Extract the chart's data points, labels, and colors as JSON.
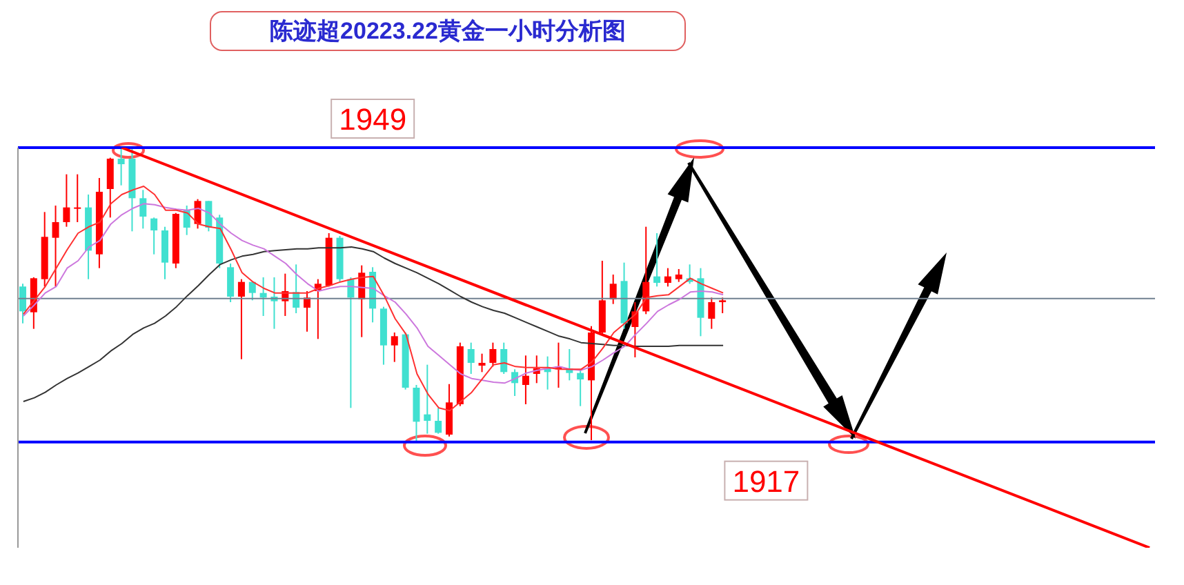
{
  "chart_data": {
    "type": "candlestick",
    "title": "陈迹超20223.22黄金一小时分析图",
    "categories": [
      null,
      null,
      null,
      null,
      null,
      null,
      null,
      null,
      null,
      null,
      null,
      null,
      null,
      null,
      null,
      null,
      null,
      null,
      null,
      null,
      null,
      null,
      null,
      null,
      null,
      null,
      null,
      null,
      null,
      null,
      null,
      null,
      null,
      null,
      null,
      null,
      null,
      null,
      null,
      null,
      null,
      null,
      null,
      null,
      null,
      null,
      null,
      null,
      null,
      null,
      null,
      null,
      null,
      null,
      null,
      null,
      null,
      null,
      null,
      null,
      null,
      null,
      null,
      null,
      null,
      null,
      null,
      null,
      null,
      null,
      null,
      null,
      null,
      null,
      null,
      null,
      null,
      null,
      null,
      null,
      null,
      null,
      null,
      null,
      null,
      null,
      null,
      null,
      null,
      null,
      null,
      null,
      null,
      null,
      null,
      null,
      null,
      null,
      null,
      null,
      null,
      null,
      null,
      null
    ],
    "ylim": [
      1905.5,
      1949
    ],
    "tick_labels": false,
    "marker": "none",
    "ohlc": [
      [
        1933.9,
        1934.2,
        1929.9,
        1931.2
      ],
      [
        1931.1,
        1934.9,
        1929.3,
        1934.8
      ],
      [
        1934.7,
        1942.0,
        1933.9,
        1939.3
      ],
      [
        1939.2,
        1942.7,
        1933.9,
        1940.9
      ],
      [
        1940.9,
        1946.1,
        1940.4,
        1942.5
      ],
      [
        1942.4,
        1946.1,
        1940.9,
        1942.5
      ],
      [
        1942.5,
        1943.9,
        1934.7,
        1937.8
      ],
      [
        1937.4,
        1945.7,
        1935.9,
        1944.2
      ],
      [
        1944.5,
        1947.9,
        1941.4,
        1947.8
      ],
      [
        1947.8,
        1949.0,
        1944.9,
        1947.2
      ],
      [
        1947.8,
        1948.9,
        1939.9,
        1943.5
      ],
      [
        1943.5,
        1944.4,
        1940.2,
        1941.5
      ],
      [
        1941.3,
        1941.4,
        1937.4,
        1940.0
      ],
      [
        1940.0,
        1940.4,
        1934.7,
        1936.5
      ],
      [
        1936.4,
        1941.9,
        1935.9,
        1941.8
      ],
      [
        1942.2,
        1942.7,
        1939.5,
        1940.3
      ],
      [
        1940.7,
        1943.4,
        1940.2,
        1943.2
      ],
      [
        1943.2,
        1943.2,
        1939.9,
        1940.3
      ],
      [
        1941.4,
        1941.7,
        1935.9,
        1936.4
      ],
      [
        1936.0,
        1936.4,
        1932.2,
        1932.8
      ],
      [
        1932.8,
        1934.7,
        1926.0,
        1934.4
      ],
      [
        1934.4,
        1934.4,
        1932.4,
        1933.2
      ],
      [
        1933.2,
        1934.9,
        1930.7,
        1932.7
      ],
      [
        1932.8,
        1934.9,
        1929.3,
        1932.3
      ],
      [
        1932.3,
        1935.3,
        1930.7,
        1933.4
      ],
      [
        1933.3,
        1936.3,
        1931.0,
        1931.6
      ],
      [
        1931.6,
        1933.4,
        1929.0,
        1932.7
      ],
      [
        1933.4,
        1934.7,
        1928.2,
        1934.2
      ],
      [
        1934.0,
        1939.7,
        1933.9,
        1939.2
      ],
      [
        1939.2,
        1939.4,
        1934.4,
        1934.7
      ],
      [
        1934.7,
        1934.9,
        1920.7,
        1932.7
      ],
      [
        1932.5,
        1936.2,
        1928.4,
        1935.4
      ],
      [
        1935.5,
        1936.0,
        1930.0,
        1931.5
      ],
      [
        1931.5,
        1931.7,
        1925.4,
        1927.5
      ],
      [
        1927.5,
        1928.9,
        1925.7,
        1928.5
      ],
      [
        1928.7,
        1928.9,
        1922.7,
        1922.9
      ],
      [
        1922.9,
        1923.2,
        1917.0,
        1919.2
      ],
      [
        1920.0,
        1925.4,
        1917.9,
        1919.3
      ],
      [
        1919.3,
        1920.7,
        1917.9,
        1918.0
      ],
      [
        1917.8,
        1923.3,
        1917.6,
        1921.3
      ],
      [
        1921.1,
        1927.8,
        1920.9,
        1927.4
      ],
      [
        1927.1,
        1927.8,
        1924.4,
        1925.6
      ],
      [
        1925.3,
        1926.6,
        1924.6,
        1925.6
      ],
      [
        1925.6,
        1927.8,
        1925.2,
        1927.1
      ],
      [
        1927.1,
        1927.8,
        1924.4,
        1924.6
      ],
      [
        1924.6,
        1924.9,
        1922.0,
        1923.4
      ],
      [
        1923.2,
        1926.4,
        1921.1,
        1924.2
      ],
      [
        1924.4,
        1926.4,
        1923.4,
        1925.0
      ],
      [
        1925.0,
        1926.3,
        1922.7,
        1924.6
      ],
      [
        1924.9,
        1927.8,
        1922.9,
        1925.2
      ],
      [
        1925.0,
        1927.1,
        1923.7,
        1924.5
      ],
      [
        1924.5,
        1924.9,
        1920.9,
        1923.8
      ],
      [
        1923.7,
        1929.6,
        1917.2,
        1928.9
      ],
      [
        1928.9,
        1936.7,
        1928.7,
        1932.4
      ],
      [
        1932.5,
        1935.2,
        1932.0,
        1934.2
      ],
      [
        1934.5,
        1936.5,
        1929.3,
        1929.9
      ],
      [
        1929.5,
        1932.2,
        1926.2,
        1931.2
      ],
      [
        1931.2,
        1940.4,
        1930.9,
        1934.4
      ],
      [
        1935.0,
        1939.7,
        1933.9,
        1934.3
      ],
      [
        1934.3,
        1935.9,
        1933.9,
        1935.0
      ],
      [
        1934.7,
        1935.8,
        1934.4,
        1935.2
      ],
      [
        1934.8,
        1936.3,
        1934.2,
        1934.4
      ],
      [
        1934.8,
        1935.9,
        1928.5,
        1930.5
      ],
      [
        1930.4,
        1932.7,
        1929.3,
        1932.2
      ],
      [
        1932.2,
        1932.7,
        1931.0,
        1932.4
      ],
      null,
      null,
      null,
      null,
      null,
      null,
      null,
      null,
      null,
      null,
      null,
      null,
      null,
      null,
      null,
      null,
      null,
      null,
      null,
      null,
      null,
      null,
      null,
      null,
      null,
      null,
      null,
      null,
      null,
      null,
      null,
      null,
      null,
      null,
      null,
      null,
      null,
      null,
      null
    ],
    "colors": [
      "#40e0d0",
      "#ff0000",
      "#ff0000",
      "#ff0000",
      "#ff0000",
      "#ff0000",
      "#40e0d0",
      "#ff0000",
      "#ff0000",
      "#40e0d0",
      "#40e0d0",
      "#40e0d0",
      "#40e0d0",
      "#40e0d0",
      "#ff0000",
      "#40e0d0",
      "#ff0000",
      "#40e0d0",
      "#40e0d0",
      "#40e0d0",
      "#ff0000",
      "#40e0d0",
      "#40e0d0",
      "#40e0d0",
      "#ff0000",
      "#40e0d0",
      "#ff0000",
      "#ff0000",
      "#ff0000",
      "#40e0d0",
      "#40e0d0",
      "#ff0000",
      "#40e0d0",
      "#40e0d0",
      "#ff0000",
      "#40e0d0",
      "#40e0d0",
      "#40e0d0",
      "#40e0d0",
      "#ff0000",
      "#ff0000",
      "#40e0d0",
      "#ff0000",
      "#ff0000",
      "#40e0d0",
      "#40e0d0",
      "#ff0000",
      "#ff0000",
      "#40e0d0",
      "#ff0000",
      "#40e0d0",
      "#40e0d0",
      "#ff0000",
      "#ff0000",
      "#ff0000",
      "#40e0d0",
      "#ff0000",
      "#ff0000",
      "#40e0d0",
      "#ff0000",
      "#ff0000",
      "#40e0d0",
      "#40e0d0",
      "#ff0000",
      "#ff0000",
      null,
      null,
      null,
      null,
      null,
      null,
      null,
      null,
      null,
      null,
      null,
      null,
      null,
      null,
      null,
      null,
      null,
      null,
      null,
      null,
      null,
      null,
      null,
      null,
      null,
      null,
      null,
      null,
      null,
      null,
      null,
      null,
      null,
      null,
      null,
      null,
      null,
      null,
      null
    ],
    "series": [
      {
        "type": "line",
        "color": "#333333",
        "values": [
          1921.4,
          1921.8,
          1922.4,
          1923.2,
          1923.9,
          1924.5,
          1925.2,
          1925.9,
          1926.9,
          1927.7,
          1928.7,
          1929.4,
          1929.9,
          1930.7,
          1931.7,
          1932.9,
          1934.0,
          1935.2,
          1936.3,
          1936.8,
          1937.2,
          1937.4,
          1937.7,
          1937.8,
          1937.9,
          1938.0,
          1938.0,
          1938.1,
          1938.1,
          1938.1,
          1938.2,
          1938.0,
          1937.7,
          1937.0,
          1936.4,
          1935.9,
          1935.4,
          1934.8,
          1934.2,
          1933.5,
          1932.8,
          1932.2,
          1931.7,
          1931.3,
          1931.0,
          1930.5,
          1930.0,
          1929.5,
          1929.0,
          1928.5,
          1928.2,
          1927.8,
          1927.7,
          1927.6,
          1927.5,
          1927.5,
          1927.4,
          1927.4,
          1927.4,
          1927.4,
          1927.5,
          1927.5,
          1927.5,
          1927.5,
          1927.5,
          null,
          null,
          null,
          null,
          null,
          null,
          null,
          null,
          null,
          null,
          null,
          null,
          null,
          null,
          null,
          null,
          null,
          null,
          null,
          null,
          null,
          null,
          null,
          null,
          null,
          null,
          null,
          null,
          null,
          null,
          null,
          null,
          null,
          null,
          null,
          null,
          null,
          null,
          null
        ]
      },
      {
        "type": "line",
        "color": "#cc77dd",
        "values": [
          1930.7,
          1931.9,
          1933.2,
          1933.9,
          1935.9,
          1936.7,
          1938.2,
          1938.9,
          1940.7,
          1941.7,
          1942.4,
          1942.9,
          1942.8,
          1942.5,
          1942.3,
          1942.2,
          1942.4,
          1941.9,
          1940.7,
          1939.7,
          1938.9,
          1938.4,
          1938.0,
          1937.2,
          1936.4,
          1935.2,
          1934.2,
          1933.4,
          1933.7,
          1933.9,
          1933.9,
          1933.8,
          1933.7,
          1932.9,
          1932.2,
          1930.9,
          1929.4,
          1927.4,
          1926.4,
          1925.4,
          1924.4,
          1923.9,
          1923.7,
          1923.5,
          1923.4,
          1923.9,
          1924.5,
          1924.8,
          1925.0,
          1925.2,
          1924.9,
          1924.8,
          1925.2,
          1925.9,
          1926.7,
          1927.4,
          1928.7,
          1929.9,
          1931.2,
          1931.9,
          1932.5,
          1933.3,
          1933.4,
          1933.3,
          1933.0,
          null,
          null,
          null,
          null,
          null,
          null,
          null,
          null,
          null,
          null,
          null,
          null,
          null,
          null,
          null,
          null,
          null,
          null,
          null,
          null,
          null,
          null,
          null,
          null,
          null,
          null,
          null,
          null,
          null,
          null,
          null,
          null,
          null,
          null,
          null,
          null,
          null,
          null,
          null
        ]
      },
      {
        "type": "line",
        "color": "#ff3030",
        "values": [
          1930.9,
          1932.4,
          1933.9,
          1935.9,
          1937.9,
          1939.7,
          1940.4,
          1940.9,
          1942.9,
          1943.9,
          1944.4,
          1944.8,
          1943.9,
          1942.2,
          1942.2,
          1941.9,
          1940.7,
          1940.4,
          1940.2,
          1937.9,
          1935.4,
          1934.4,
          1933.7,
          1933.2,
          1933.2,
          1933.2,
          1933.2,
          1933.7,
          1934.0,
          1934.4,
          1934.7,
          1934.9,
          1935.0,
          1932.9,
          1930.4,
          1928.7,
          1924.4,
          1922.2,
          1920.7,
          1920.4,
          1921.4,
          1922.4,
          1923.9,
          1925.4,
          1925.6,
          1925.2,
          1925.1,
          1925.1,
          1925.1,
          1924.9,
          1924.9,
          1924.9,
          1925.7,
          1927.2,
          1928.9,
          1929.9,
          1930.9,
          1932.7,
          1932.9,
          1933.0,
          1933.9,
          1934.8,
          1934.2,
          1933.7,
          1933.2,
          null,
          null,
          null,
          null,
          null,
          null,
          null,
          null,
          null,
          null,
          null,
          null,
          null,
          null,
          null,
          null,
          null,
          null,
          null,
          null,
          null,
          null,
          null,
          null,
          null,
          null,
          null,
          null,
          null,
          null,
          null,
          null,
          null,
          null,
          null,
          null,
          null,
          null,
          null
        ]
      },
      {
        "type": "line",
        "color": "#ff0000",
        "values": [
          null,
          null,
          null,
          null,
          null,
          null,
          null,
          null,
          null,
          1949,
          null,
          null,
          null,
          null,
          null,
          null,
          null,
          null,
          null,
          null,
          null,
          null,
          null,
          null,
          null,
          null,
          null,
          null,
          null,
          null,
          null,
          null,
          null,
          null,
          null,
          null,
          null,
          null,
          null,
          null,
          null,
          null,
          null,
          null,
          null,
          null,
          null,
          null,
          null,
          null,
          null,
          null,
          null,
          null,
          null,
          null,
          null,
          null,
          null,
          null,
          null,
          null,
          null,
          null,
          null,
          null,
          null,
          null,
          null,
          null,
          null,
          null,
          null,
          null,
          null,
          null,
          null,
          null,
          null,
          null,
          null,
          null,
          null,
          null,
          null,
          null,
          null,
          null,
          null,
          null,
          null,
          null,
          null,
          null,
          null,
          null,
          null,
          null,
          null,
          null,
          null,
          null,
          null,
          1905.5
        ]
      }
    ],
    "ref_lines": [
      {
        "axis": "y",
        "value": 1949,
        "label": "1949",
        "color": "#0000ff"
      },
      {
        "axis": "y",
        "value": 1917,
        "label": "1917",
        "color": "#0000ff"
      },
      {
        "axis": "y",
        "value": 1932.6,
        "color": "#708090"
      }
    ]
  }
}
